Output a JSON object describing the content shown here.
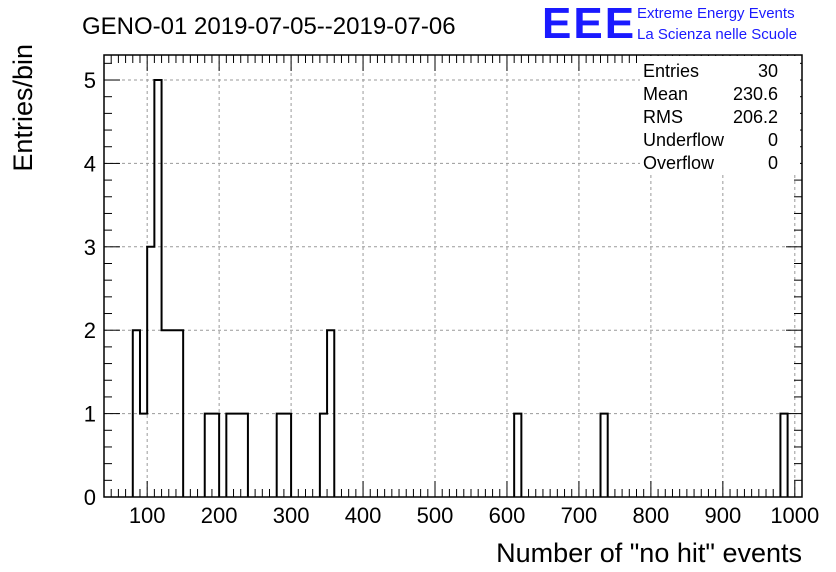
{
  "title": "GENO-01 2019-07-05--2019-07-06",
  "logo": {
    "text": "EEE",
    "line1": "Extreme Energy Events",
    "line2": "La Scienza nelle Scuole",
    "color": "#1a1aff"
  },
  "stats": [
    {
      "label": "Entries",
      "value": "30"
    },
    {
      "label": "Mean",
      "value": "230.6"
    },
    {
      "label": "RMS",
      "value": "206.2"
    },
    {
      "label": "Underflow",
      "value": "0"
    },
    {
      "label": "Overflow",
      "value": "0"
    }
  ],
  "chart_data": {
    "type": "bar",
    "style": "step-histogram",
    "xlabel": "Number of \"no hit\" events",
    "ylabel": "Entries/bin",
    "xlim": [
      40,
      1010
    ],
    "ylim": [
      0,
      5.3
    ],
    "xticks": [
      100,
      200,
      300,
      400,
      500,
      600,
      700,
      800,
      900,
      1000
    ],
    "yticks": [
      0,
      1,
      2,
      3,
      4,
      5
    ],
    "grid": true,
    "bin_width": 10,
    "bins": [
      {
        "x0": 80,
        "x1": 90,
        "count": 2
      },
      {
        "x0": 90,
        "x1": 100,
        "count": 1
      },
      {
        "x0": 100,
        "x1": 110,
        "count": 3
      },
      {
        "x0": 110,
        "x1": 120,
        "count": 5
      },
      {
        "x0": 120,
        "x1": 130,
        "count": 2
      },
      {
        "x0": 130,
        "x1": 140,
        "count": 2
      },
      {
        "x0": 140,
        "x1": 150,
        "count": 2
      },
      {
        "x0": 180,
        "x1": 190,
        "count": 1
      },
      {
        "x0": 190,
        "x1": 200,
        "count": 1
      },
      {
        "x0": 210,
        "x1": 220,
        "count": 1
      },
      {
        "x0": 220,
        "x1": 230,
        "count": 1
      },
      {
        "x0": 230,
        "x1": 240,
        "count": 1
      },
      {
        "x0": 280,
        "x1": 290,
        "count": 1
      },
      {
        "x0": 290,
        "x1": 300,
        "count": 1
      },
      {
        "x0": 340,
        "x1": 350,
        "count": 1
      },
      {
        "x0": 350,
        "x1": 360,
        "count": 2
      },
      {
        "x0": 610,
        "x1": 620,
        "count": 1
      },
      {
        "x0": 730,
        "x1": 740,
        "count": 1
      },
      {
        "x0": 980,
        "x1": 990,
        "count": 1
      }
    ]
  }
}
